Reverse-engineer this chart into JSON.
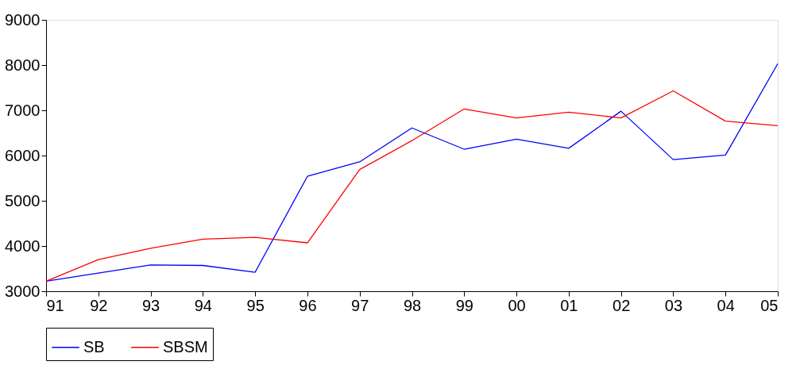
{
  "chart_data": {
    "type": "line",
    "categories": [
      "91",
      "92",
      "93",
      "94",
      "95",
      "96",
      "97",
      "98",
      "99",
      "00",
      "01",
      "02",
      "03",
      "04",
      "05"
    ],
    "series": [
      {
        "name": "SB",
        "color": "#0000ff",
        "values": [
          3220,
          3400,
          3580,
          3570,
          3420,
          5540,
          5860,
          6610,
          6140,
          6360,
          6160,
          6980,
          5910,
          6010,
          8030
        ]
      },
      {
        "name": "SBSM",
        "color": "#ff0000",
        "values": [
          3220,
          3700,
          3950,
          4150,
          4190,
          4070,
          5690,
          6330,
          7030,
          6830,
          6960,
          6830,
          7430,
          6760,
          6660
        ]
      }
    ],
    "ylim": [
      3000,
      9000
    ],
    "yticks": [
      3000,
      4000,
      5000,
      6000,
      7000,
      8000,
      9000
    ],
    "grid": false,
    "legend": "bottom",
    "marker": "none",
    "line_style": "solid"
  }
}
